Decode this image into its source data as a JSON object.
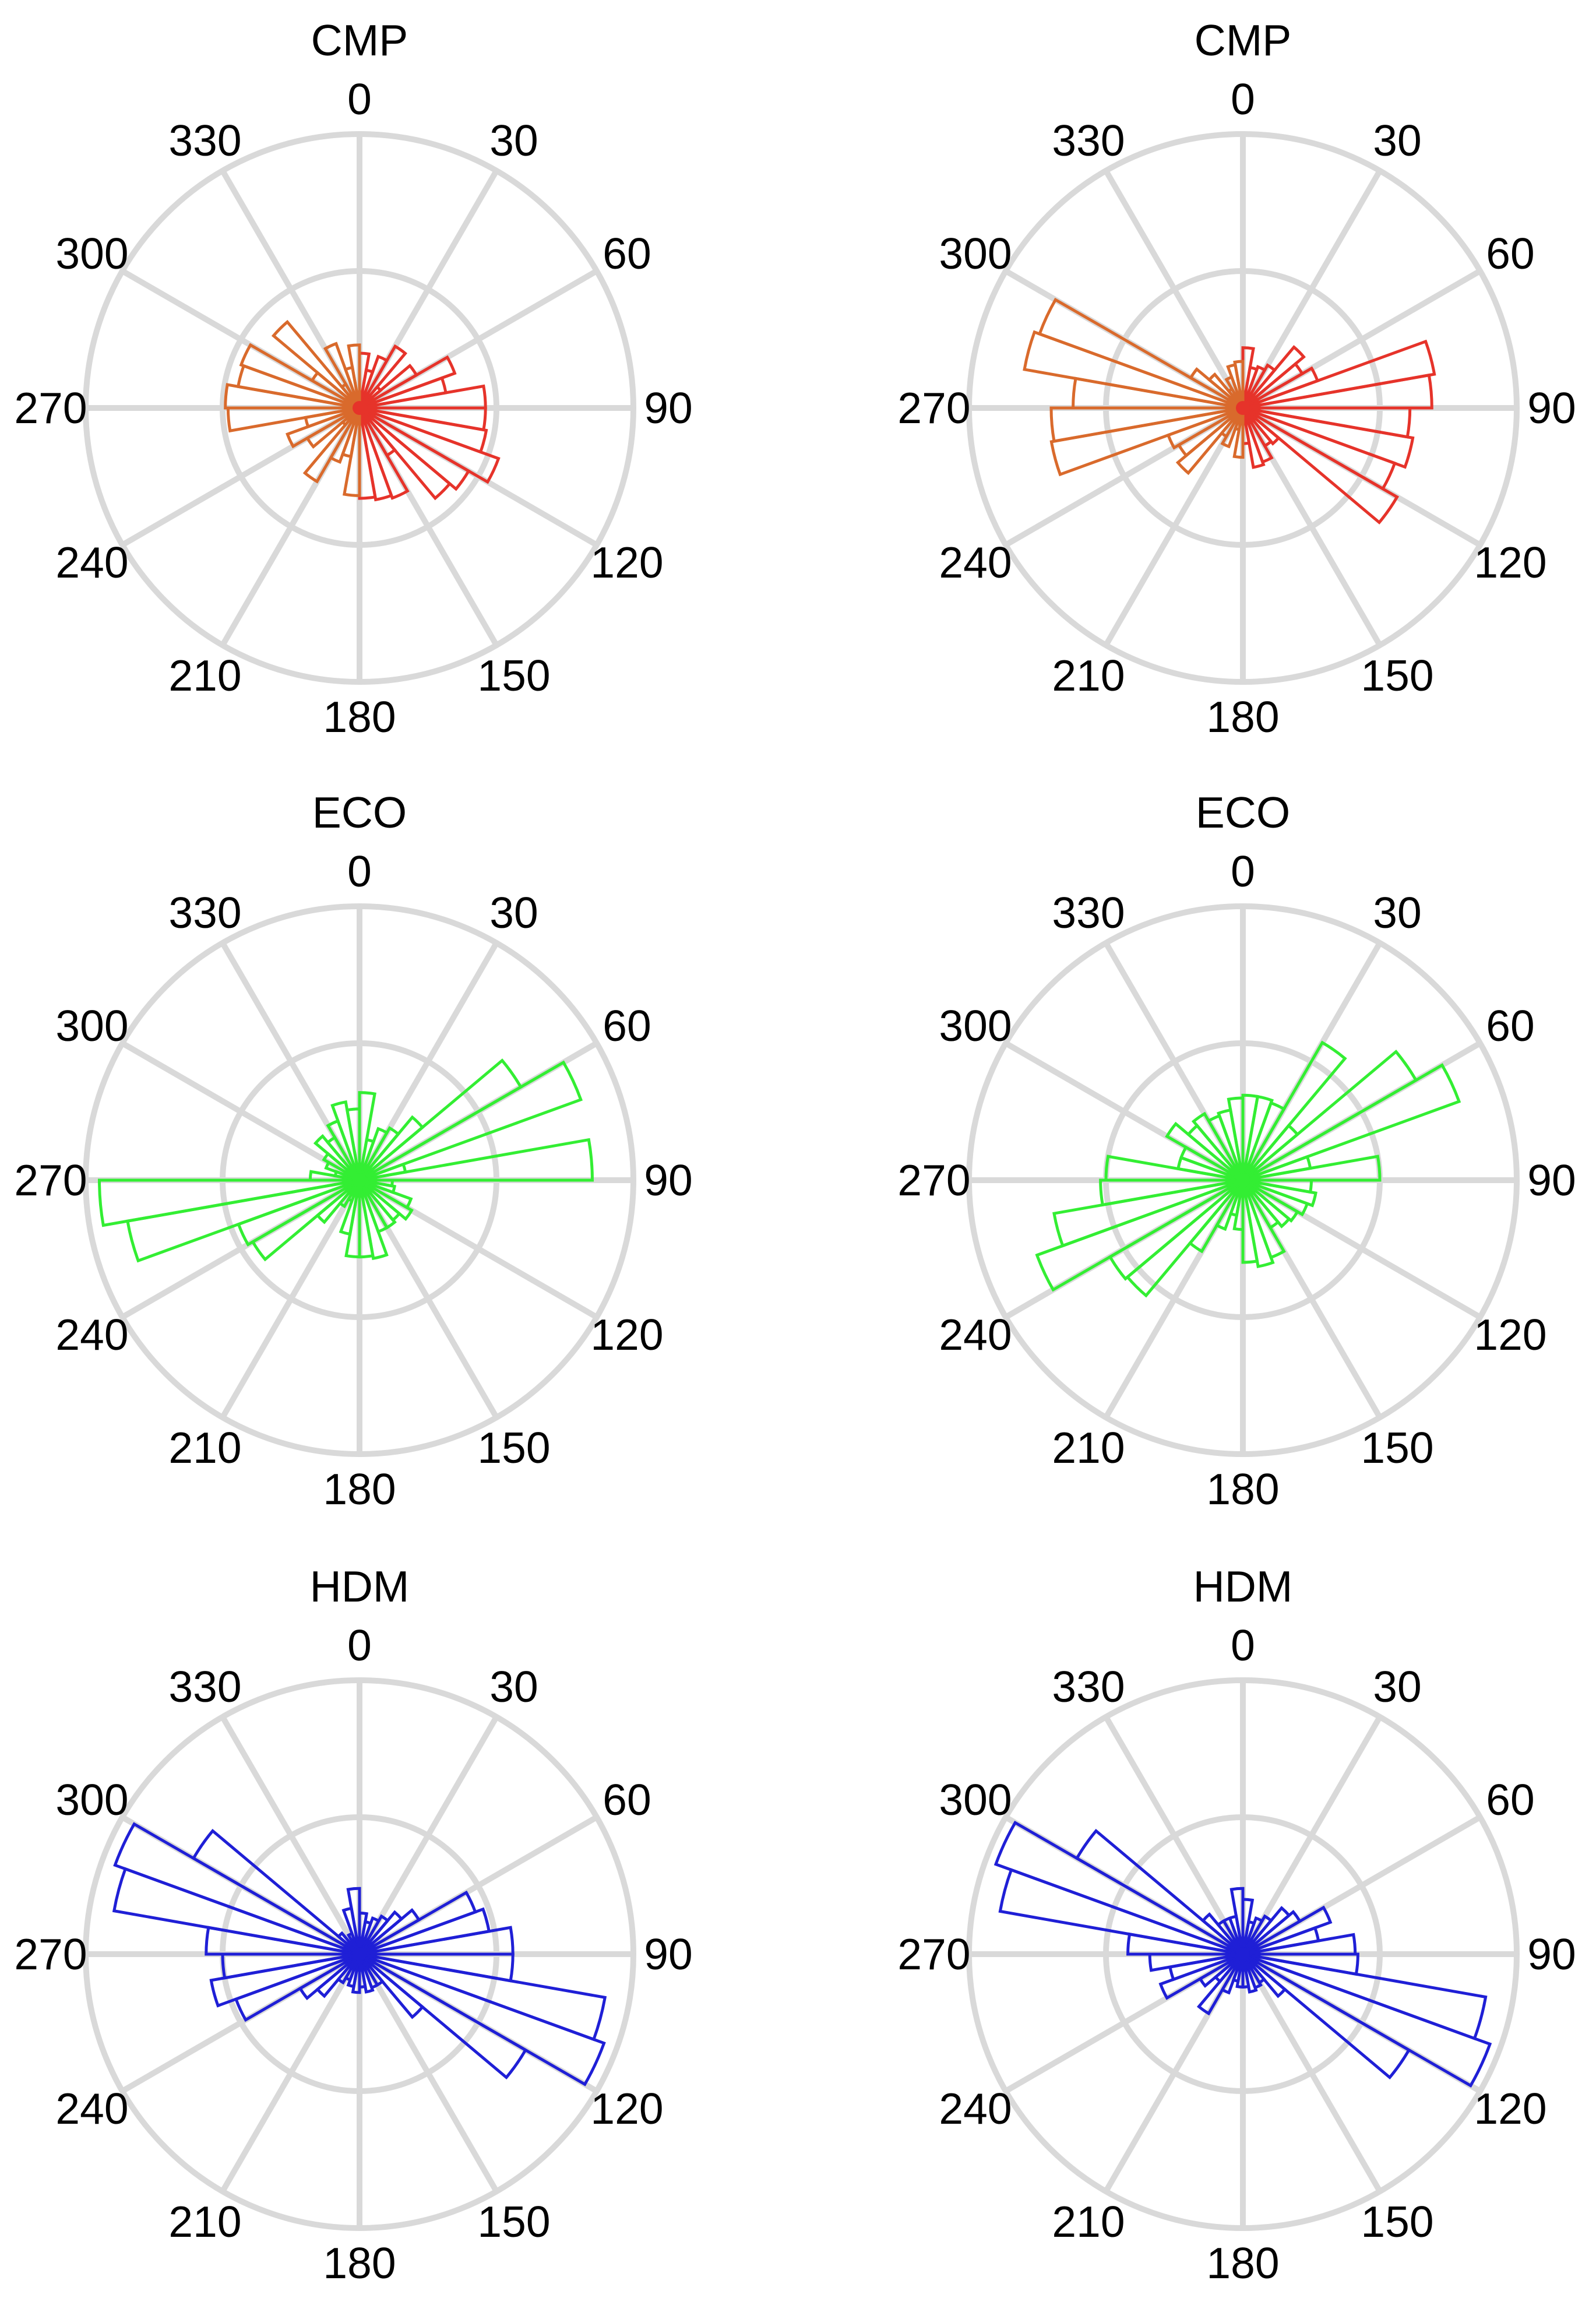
{
  "chart_data": [
    {
      "type": "polar-histogram",
      "title": "CMP",
      "theta_ticks": [
        "0",
        "30",
        "60",
        "90",
        "120",
        "150",
        "180",
        "210",
        "240",
        "270",
        "300",
        "330"
      ],
      "rmax": 1.0,
      "rings": [
        0.5,
        1.0
      ],
      "bin_width_deg": 10,
      "bin_starts_deg": [
        0,
        10,
        20,
        30,
        40,
        50,
        60,
        70,
        80,
        90,
        100,
        110,
        120,
        130,
        140,
        150,
        160,
        170,
        180,
        190,
        200,
        210,
        220,
        230,
        240,
        250,
        260,
        270,
        280,
        290,
        300,
        310,
        320,
        330,
        340,
        350
      ],
      "values": [
        0.2,
        0.14,
        0.2,
        0.26,
        0.1,
        0.24,
        0.37,
        0.32,
        0.46,
        0.46,
        0.47,
        0.54,
        0.46,
        0.43,
        0.2,
        0.35,
        0.34,
        0.33,
        0.32,
        0.18,
        0.21,
        0.31,
        0.08,
        0.22,
        0.28,
        0.2,
        0.48,
        0.49,
        0.45,
        0.46,
        0.2,
        0.41,
        0.1,
        0.25,
        0.15,
        0.23
      ],
      "color": "#e6332a"
    },
    {
      "type": "polar-histogram",
      "title": "CMP",
      "theta_ticks": [
        "0",
        "30",
        "60",
        "90",
        "120",
        "150",
        "180",
        "210",
        "240",
        "270",
        "300",
        "330"
      ],
      "rmax": 1.0,
      "rings": [
        0.5,
        1.0
      ],
      "bin_width_deg": 10,
      "bin_starts_deg": [
        0,
        10,
        20,
        30,
        40,
        50,
        60,
        70,
        80,
        90,
        100,
        110,
        120,
        130,
        140,
        150,
        160,
        170,
        180,
        190,
        200,
        210,
        220,
        230,
        240,
        250,
        260,
        270,
        280,
        290,
        300,
        310,
        320,
        330,
        340,
        350
      ],
      "values": [
        0.22,
        0.15,
        0.16,
        0.18,
        0.29,
        0.25,
        0.29,
        0.71,
        0.69,
        0.61,
        0.63,
        0.59,
        0.65,
        0.17,
        0.16,
        0.21,
        0.22,
        0.13,
        0.18,
        0.08,
        0.15,
        0.12,
        0.31,
        0.27,
        0.29,
        0.71,
        0.7,
        0.62,
        0.81,
        0.79,
        0.22,
        0.16,
        0.08,
        0.12,
        0.16,
        0.17
      ],
      "color": "#e6332a"
    },
    {
      "type": "polar-histogram",
      "title": "ECO",
      "theta_ticks": [
        "0",
        "30",
        "60",
        "90",
        "120",
        "150",
        "180",
        "210",
        "240",
        "270",
        "300",
        "330"
      ],
      "rmax": 1.0,
      "rings": [
        0.5,
        1.0
      ],
      "bin_width_deg": 10,
      "bin_starts_deg": [
        0,
        10,
        20,
        30,
        40,
        50,
        60,
        70,
        80,
        90,
        100,
        110,
        120,
        130,
        140,
        150,
        160,
        170,
        180,
        190,
        200,
        210,
        220,
        230,
        240,
        250,
        260,
        270,
        280,
        290,
        300,
        310,
        320,
        330,
        340,
        350
      ],
      "values": [
        0.32,
        0.15,
        0.2,
        0.22,
        0.3,
        0.68,
        0.86,
        0.17,
        0.85,
        0.12,
        0.13,
        0.2,
        0.22,
        0.19,
        0.2,
        0.2,
        0.29,
        0.28,
        0.28,
        0.2,
        0.08,
        0.11,
        0.2,
        0.45,
        0.47,
        0.86,
        0.95,
        0.18,
        0.09,
        0.13,
        0.15,
        0.21,
        0.18,
        0.23,
        0.29,
        0.26
      ],
      "color": "#33ee33"
    },
    {
      "type": "polar-histogram",
      "title": "ECO",
      "theta_ticks": [
        "0",
        "30",
        "60",
        "90",
        "120",
        "150",
        "180",
        "210",
        "240",
        "270",
        "300",
        "330"
      ],
      "rmax": 1.0,
      "rings": [
        0.5,
        1.0
      ],
      "bin_width_deg": 10,
      "bin_starts_deg": [
        0,
        10,
        20,
        30,
        40,
        50,
        60,
        70,
        80,
        90,
        100,
        110,
        120,
        130,
        140,
        150,
        160,
        170,
        180,
        190,
        200,
        210,
        220,
        230,
        240,
        250,
        260,
        270,
        280,
        290,
        300,
        310,
        320,
        330,
        340,
        350
      ],
      "values": [
        0.31,
        0.31,
        0.3,
        0.58,
        0.26,
        0.73,
        0.84,
        0.25,
        0.5,
        0.25,
        0.27,
        0.25,
        0.23,
        0.22,
        0.2,
        0.3,
        0.32,
        0.3,
        0.18,
        0.13,
        0.19,
        0.3,
        0.55,
        0.56,
        0.8,
        0.7,
        0.52,
        0.5,
        0.24,
        0.24,
        0.32,
        0.26,
        0.28,
        0.25,
        0.26,
        0.3
      ],
      "color": "#33ee33"
    },
    {
      "type": "polar-histogram",
      "title": "HDM",
      "theta_ticks": [
        "0",
        "30",
        "60",
        "90",
        "120",
        "150",
        "180",
        "210",
        "240",
        "270",
        "300",
        "330"
      ],
      "rmax": 1.0,
      "rings": [
        0.5,
        1.0
      ],
      "bin_width_deg": 10,
      "bin_starts_deg": [
        0,
        10,
        20,
        30,
        40,
        50,
        60,
        70,
        80,
        90,
        100,
        110,
        120,
        130,
        140,
        150,
        160,
        170,
        180,
        190,
        200,
        210,
        220,
        230,
        240,
        250,
        260,
        270,
        280,
        290,
        300,
        310,
        320,
        330,
        340,
        350
      ],
      "values": [
        0.15,
        0.12,
        0.14,
        0.16,
        0.2,
        0.25,
        0.45,
        0.48,
        0.56,
        0.56,
        0.91,
        0.95,
        0.7,
        0.3,
        0.13,
        0.13,
        0.14,
        0.12,
        0.14,
        0.12,
        0.1,
        0.12,
        0.2,
        0.25,
        0.48,
        0.55,
        0.5,
        0.56,
        0.91,
        0.95,
        0.7,
        0.1,
        0.05,
        0.08,
        0.17,
        0.24
      ],
      "color": "#1f1fd6"
    },
    {
      "type": "polar-histogram",
      "title": "HDM",
      "theta_ticks": [
        "0",
        "30",
        "60",
        "90",
        "120",
        "150",
        "180",
        "210",
        "240",
        "270",
        "300",
        "330"
      ],
      "rmax": 1.0,
      "rings": [
        0.5,
        1.0
      ],
      "bin_width_deg": 10,
      "bin_starts_deg": [
        0,
        10,
        20,
        30,
        40,
        50,
        60,
        70,
        80,
        90,
        100,
        110,
        120,
        130,
        140,
        150,
        160,
        170,
        180,
        190,
        200,
        210,
        220,
        230,
        240,
        250,
        260,
        270,
        280,
        290,
        300,
        310,
        320,
        330,
        340,
        350
      ],
      "values": [
        0.2,
        0.12,
        0.14,
        0.16,
        0.22,
        0.24,
        0.34,
        0.28,
        0.41,
        0.42,
        0.9,
        0.96,
        0.7,
        0.2,
        0.12,
        0.13,
        0.14,
        0.12,
        0.12,
        0.1,
        0.15,
        0.25,
        0.13,
        0.18,
        0.32,
        0.27,
        0.34,
        0.42,
        0.9,
        0.96,
        0.7,
        0.19,
        0.14,
        0.14,
        0.14,
        0.24
      ],
      "color": "#1f1fd6"
    }
  ]
}
